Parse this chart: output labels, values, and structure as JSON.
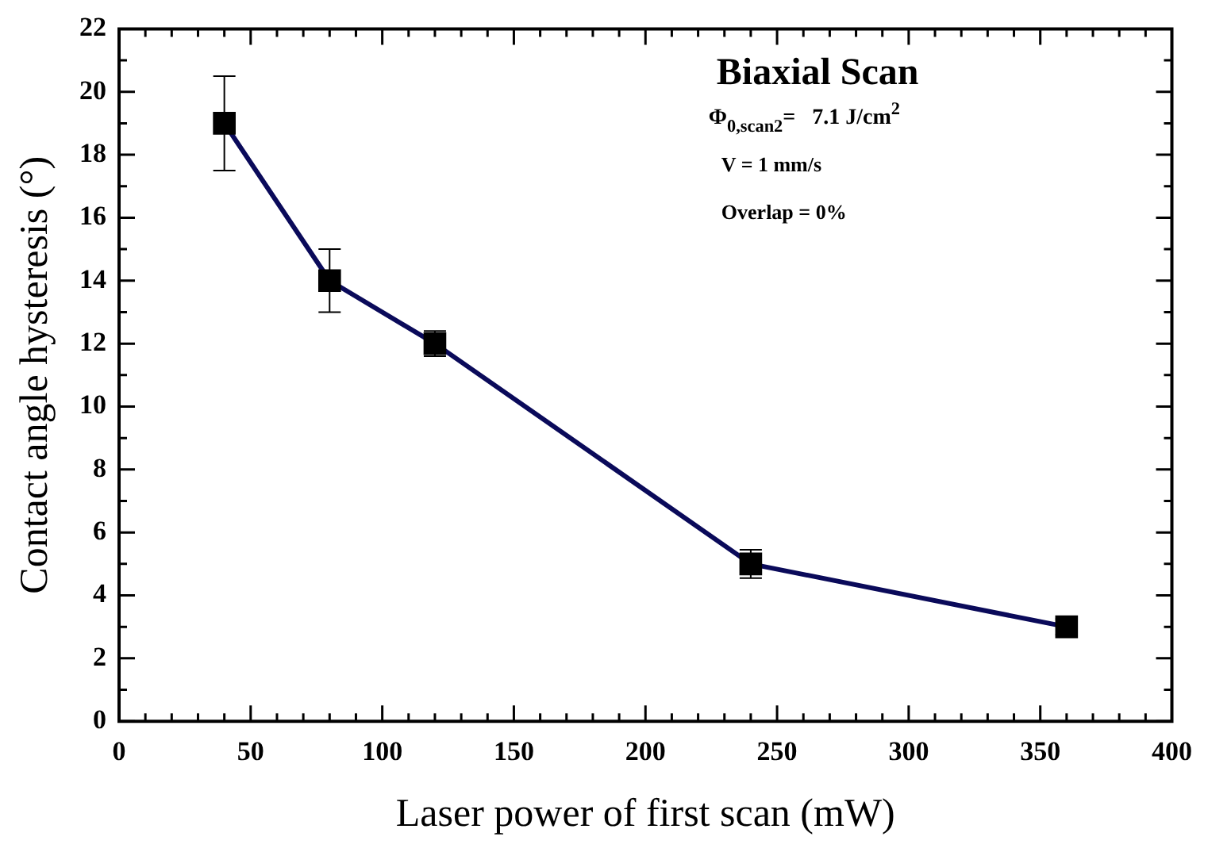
{
  "chart_data": {
    "type": "line",
    "title": "Biaxial Scan",
    "xlabel": "Laser power of first scan (mW)",
    "ylabel": "Contact angle hysteresis (°)",
    "x": [
      40,
      80,
      120,
      240,
      360
    ],
    "series": [
      {
        "color": "#0a0a5a",
        "values": [
          19,
          14,
          12,
          5,
          3
        ],
        "errors": [
          1.5,
          1,
          0.4,
          0.45,
          0.25
        ]
      }
    ],
    "marker": "square",
    "line_style": "solid",
    "grid": false,
    "legend": false,
    "xlim": [
      0,
      400
    ],
    "xticks": [
      0,
      50,
      100,
      150,
      200,
      250,
      300,
      350,
      400
    ],
    "ylim": [
      0,
      22
    ],
    "yticks": [
      0,
      2,
      4,
      6,
      8,
      10,
      12,
      14,
      16,
      18,
      20,
      22
    ],
    "annotations": [
      "Φ$_{0,scan2}$=   7.1 J/cm$^{2}$",
      "V = 1 mm/s",
      "Overlap = 0%"
    ]
  }
}
